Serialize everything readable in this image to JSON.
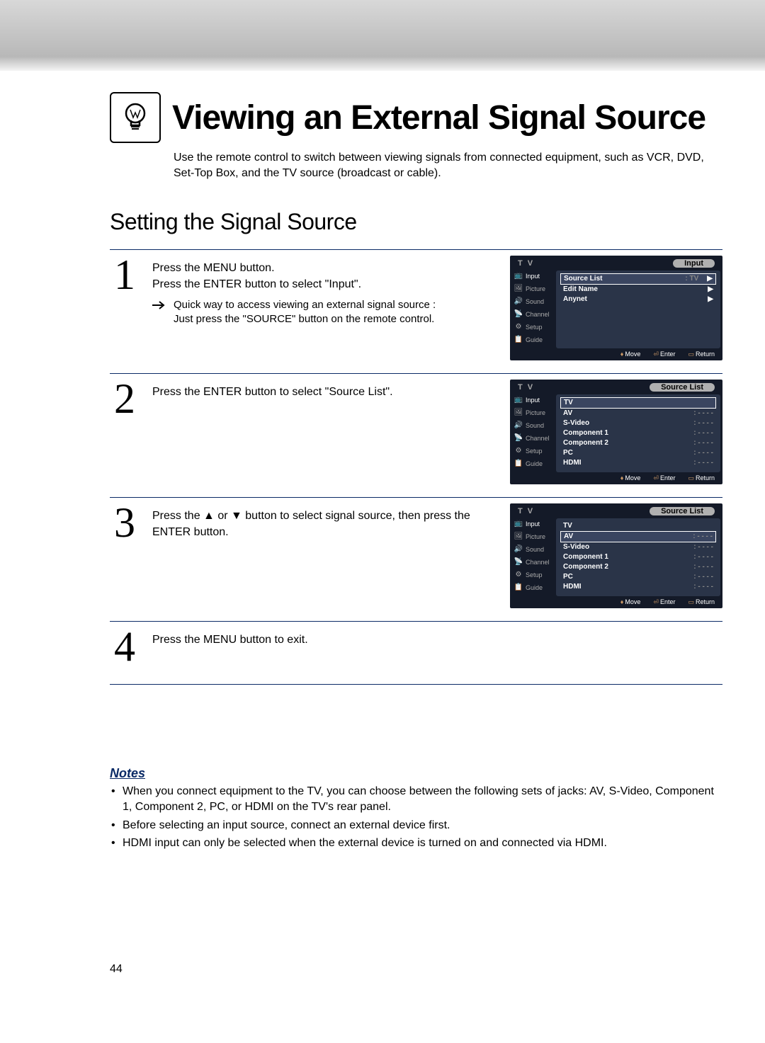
{
  "page": {
    "title": "Viewing an External Signal Source",
    "intro": "Use the remote control to switch between viewing signals from connected equipment, such as VCR, DVD, Set-Top Box, and the TV source (broadcast or cable).",
    "section_title": "Setting the Signal Source",
    "page_number": "44"
  },
  "steps": {
    "s1": {
      "num": "1",
      "text1": "Press the MENU button.",
      "text2": "Press the ENTER button to select \"Input\".",
      "hint1": "Quick way to access viewing an external signal source :",
      "hint2": "Just press the \"SOURCE\" button on the remote control."
    },
    "s2": {
      "num": "2",
      "text": "Press the ENTER button to select \"Source List\"."
    },
    "s3": {
      "num": "3",
      "text": "Press the ▲ or ▼ button to select signal source, then press the ENTER button."
    },
    "s4": {
      "num": "4",
      "text": "Press the MENU button to exit."
    }
  },
  "osd": {
    "header_left": "T V",
    "side_items": [
      "Input",
      "Picture",
      "Sound",
      "Channel",
      "Setup",
      "Guide"
    ],
    "footer": {
      "move": "Move",
      "enter": "Enter",
      "return": "Return"
    },
    "screen1": {
      "title": "Input",
      "rows": [
        {
          "label": "Source List",
          "value": ": TV",
          "boxed": true,
          "chev": "▶"
        },
        {
          "label": "Edit Name",
          "value": "",
          "boxed": false,
          "chev": "▶"
        },
        {
          "label": "Anynet",
          "value": "",
          "boxed": false,
          "chev": "▶"
        }
      ]
    },
    "screen2": {
      "title": "Source List",
      "rows": [
        {
          "label": "TV",
          "value": "",
          "boxed": true
        },
        {
          "label": "AV",
          "value": ": - - - -"
        },
        {
          "label": "S-Video",
          "value": ": - - - -"
        },
        {
          "label": "Component 1",
          "value": ": - - - -"
        },
        {
          "label": "Component 2",
          "value": ": - - - -"
        },
        {
          "label": "PC",
          "value": ": - - - -"
        },
        {
          "label": "HDMI",
          "value": ": - - - -"
        }
      ]
    },
    "screen3": {
      "title": "Source List",
      "rows": [
        {
          "label": "TV",
          "value": ""
        },
        {
          "label": "AV",
          "value": ": - - - -",
          "boxed": true
        },
        {
          "label": "S-Video",
          "value": ": - - - -"
        },
        {
          "label": "Component 1",
          "value": ": - - - -"
        },
        {
          "label": "Component 2",
          "value": ": - - - -"
        },
        {
          "label": "PC",
          "value": ": - - - -"
        },
        {
          "label": "HDMI",
          "value": ": - - - -"
        }
      ]
    }
  },
  "notes": {
    "heading": "Notes",
    "items": [
      "When you connect equipment to the TV, you can choose between the following sets of jacks: AV, S-Video, Component 1, Component 2, PC, or HDMI on the TV's rear panel.",
      "Before selecting an input source, connect an external device first.",
      "HDMI input can only be selected when the external device is turned on and connected via HDMI."
    ]
  },
  "colors": {
    "rule": "#0a2a66",
    "osd_bg": "#141a28",
    "osd_panel": "#2a3448"
  }
}
